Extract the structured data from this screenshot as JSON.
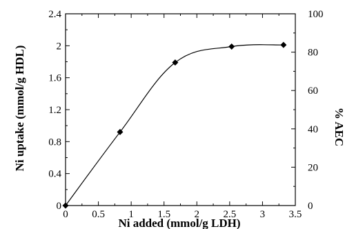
{
  "chart_data": {
    "type": "line",
    "title": "",
    "xlabel": "Ni added (mmol/g LDH)",
    "ylabel": "Ni uptake (mmol/g HDL)",
    "y2label": "% AEC",
    "xlim": [
      0,
      3.5
    ],
    "ylim": [
      0,
      2.4
    ],
    "y2lim": [
      0,
      100
    ],
    "xticks": [
      "0",
      "0.5",
      "1",
      "1.5",
      "2",
      "2.5",
      "3",
      "3.5"
    ],
    "yticks": [
      "0",
      "0.4",
      "0.8",
      "1.2",
      "1.6",
      "2",
      "2.4"
    ],
    "y2ticks": [
      "0",
      "20",
      "40",
      "60",
      "80",
      "100"
    ],
    "grid": false,
    "series": [
      {
        "x": [
          0,
          0.83,
          1.67,
          2.53,
          3.32
        ],
        "y": [
          0,
          0.92,
          1.79,
          1.99,
          2.01
        ]
      }
    ]
  }
}
